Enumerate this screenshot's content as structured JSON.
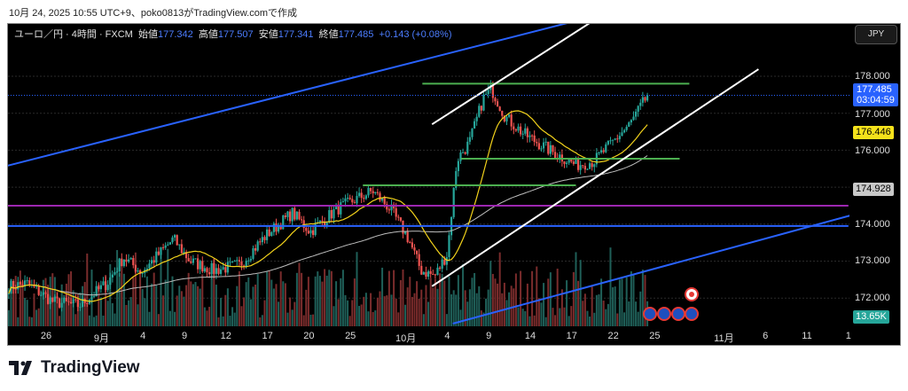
{
  "caption": "10月 24, 2025 10:55 UTC+9、poko0813がTradingView.comで作成",
  "legend": {
    "symbol": "ユーロ／円 · 4時間 · FXCM",
    "open_label": "始値",
    "open": "177.342",
    "high_label": "高値",
    "high": "177.507",
    "low_label": "安値",
    "low": "177.341",
    "close_label": "終値",
    "close": "177.485",
    "change": "+0.143 (+0.08%)"
  },
  "currency_button": "JPY",
  "price_badges": {
    "last": "177.485",
    "countdown": "03:04:59",
    "ma_fast": "176.446",
    "ma_slow": "174.928",
    "volume": "13.65K"
  },
  "colors": {
    "up": "#26a69a",
    "down": "#ef5350",
    "blue_line": "#2962ff",
    "purple_line": "#9c27b0",
    "green_line": "#4caf50",
    "ma_fast": "#f2d21b",
    "ma_slow": "#9e9e9e"
  },
  "logo": "TradingView",
  "chart_data": {
    "type": "candlestick",
    "symbol": "EURJPY 4H",
    "x_unit": "trading days since Aug 26",
    "ylim": [
      171.3,
      179.0
    ],
    "y_ticks": [
      "178.000",
      "177.000",
      "176.000",
      "174.000",
      "173.000",
      "172.000"
    ],
    "x_ticks": [
      {
        "label": "26",
        "x": 0
      },
      {
        "label": "9月",
        "x": 4
      },
      {
        "label": "4",
        "x": 7
      },
      {
        "label": "9",
        "x": 10
      },
      {
        "label": "12",
        "x": 13
      },
      {
        "label": "17",
        "x": 16
      },
      {
        "label": "20",
        "x": 19
      },
      {
        "label": "25",
        "x": 22
      },
      {
        "label": "10月",
        "x": 26
      },
      {
        "label": "4",
        "x": 29
      },
      {
        "label": "9",
        "x": 32
      },
      {
        "label": "14",
        "x": 35
      },
      {
        "label": "17",
        "x": 38
      },
      {
        "label": "22",
        "x": 41
      },
      {
        "label": "25",
        "x": 44
      },
      {
        "label": "11月",
        "x": 49
      },
      {
        "label": "6",
        "x": 52
      },
      {
        "label": "11",
        "x": 55
      },
      {
        "label": "1",
        "x": 58
      }
    ],
    "close_path": [
      [
        -2.7,
        172.3
      ],
      [
        -1.4,
        172.4
      ],
      [
        0.5,
        171.9
      ],
      [
        2.4,
        171.8
      ],
      [
        4.4,
        172.4
      ],
      [
        5.6,
        173.1
      ],
      [
        6.9,
        172.7
      ],
      [
        9.2,
        173.6
      ],
      [
        10.4,
        173.0
      ],
      [
        12.1,
        172.75
      ],
      [
        14.0,
        172.9
      ],
      [
        15.9,
        173.7
      ],
      [
        17.8,
        174.3
      ],
      [
        19.1,
        173.8
      ],
      [
        21.0,
        174.4
      ],
      [
        23.6,
        174.9
      ],
      [
        24.9,
        174.4
      ],
      [
        26.2,
        173.6
      ],
      [
        27.1,
        172.75
      ],
      [
        28.1,
        172.6
      ],
      [
        29.0,
        173.2
      ],
      [
        29.7,
        175.75
      ],
      [
        30.6,
        176.2
      ],
      [
        31.6,
        177.4
      ],
      [
        32.2,
        177.65
      ],
      [
        33.2,
        176.9
      ],
      [
        34.5,
        176.45
      ],
      [
        36.4,
        176.0
      ],
      [
        38.3,
        175.6
      ],
      [
        39.6,
        175.7
      ],
      [
        40.9,
        176.2
      ],
      [
        42.2,
        176.7
      ],
      [
        43.5,
        177.485
      ]
    ],
    "trendlines": [
      {
        "name": "blue-upper-trendline",
        "color": "blue_line",
        "p1": [
          -2.8,
          175.58
        ],
        "p2": [
          37.7,
          179.44
        ]
      },
      {
        "name": "white-channel-upper",
        "color": "#ffffff",
        "p1": [
          27.9,
          176.7
        ],
        "p2": [
          39.3,
          179.44
        ]
      },
      {
        "name": "white-channel-lower",
        "color": "#ffffff",
        "p1": [
          27.9,
          172.32
        ],
        "p2": [
          51.5,
          178.19
        ]
      },
      {
        "name": "blue-lower-trendline",
        "color": "blue_line",
        "p1": [
          29.4,
          171.31
        ],
        "p2": [
          58.1,
          174.23
        ]
      }
    ],
    "horizontal_lines": [
      {
        "name": "purple-level",
        "color": "purple_line",
        "price": 174.5,
        "from": -2.8,
        "to": 58
      },
      {
        "name": "blue-level",
        "color": "blue_line",
        "price": 173.95,
        "from": -2.8,
        "to": 58
      },
      {
        "name": "green-level-high",
        "color": "green_line",
        "price": 177.8,
        "from": 27.2,
        "to": 46.5
      },
      {
        "name": "green-level-mid",
        "color": "green_line",
        "price": 175.77,
        "from": 30,
        "to": 45.8
      },
      {
        "name": "green-level-low",
        "color": "green_line",
        "price": 175.05,
        "from": 22.9,
        "to": 38.3
      }
    ],
    "ma_fast_period": 20,
    "ma_slow_period": 100,
    "last_price": 177.485,
    "ma_fast_last": 176.446,
    "ma_slow_last": 174.928
  }
}
